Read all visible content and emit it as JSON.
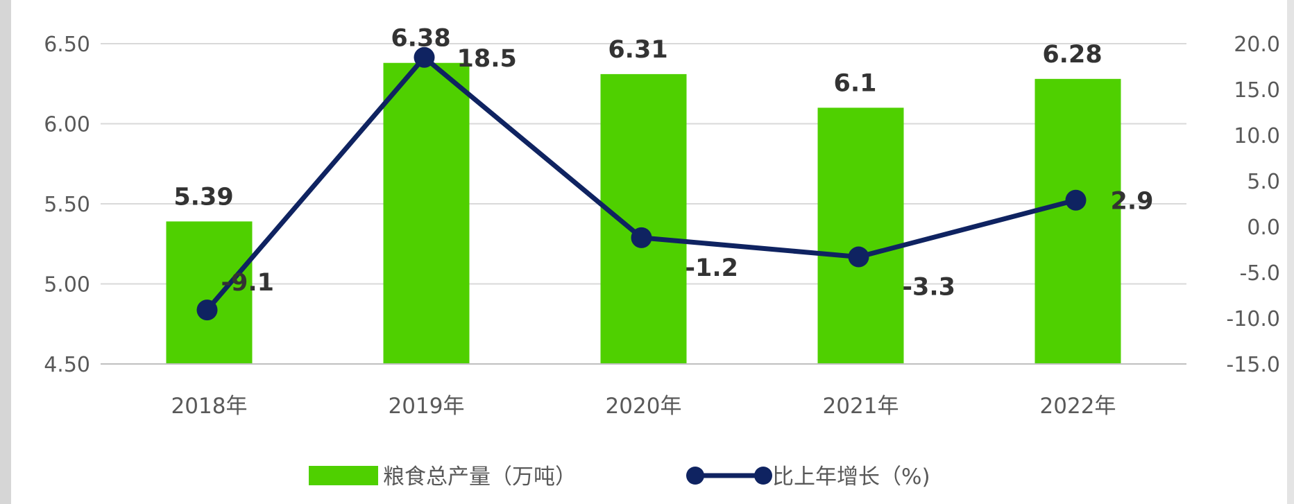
{
  "chart_data": {
    "type": "bar+line",
    "categories": [
      "2018年",
      "2019年",
      "2020年",
      "2021年",
      "2022年"
    ],
    "series": [
      {
        "name": "粮食总产量（万吨）",
        "type": "bar",
        "axis": "left",
        "values": [
          5.39,
          6.38,
          6.31,
          6.1,
          6.28
        ],
        "labels": [
          "5.39",
          "6.38",
          "6.31",
          "6.1",
          "6.28"
        ],
        "color": "#4fd000"
      },
      {
        "name": "比上年增长（%)",
        "type": "line",
        "axis": "right",
        "values": [
          -9.1,
          18.5,
          -1.2,
          -3.3,
          2.9
        ],
        "labels": [
          "-9.1",
          "18.5",
          "-1.2",
          "-3.3",
          "2.9"
        ],
        "color": "#0f2361"
      }
    ],
    "y_left": {
      "ylim": [
        4.5,
        6.5
      ],
      "ticks": [
        "4.50",
        "5.00",
        "5.50",
        "6.00",
        "6.50"
      ]
    },
    "y_right": {
      "ylim": [
        -15,
        20
      ],
      "ticks": [
        "-15.0",
        "-10.0",
        "-5.0",
        "0.0",
        "5.0",
        "10.0",
        "15.0",
        "20.0"
      ]
    },
    "grid": true,
    "legend": "bottom-center"
  }
}
